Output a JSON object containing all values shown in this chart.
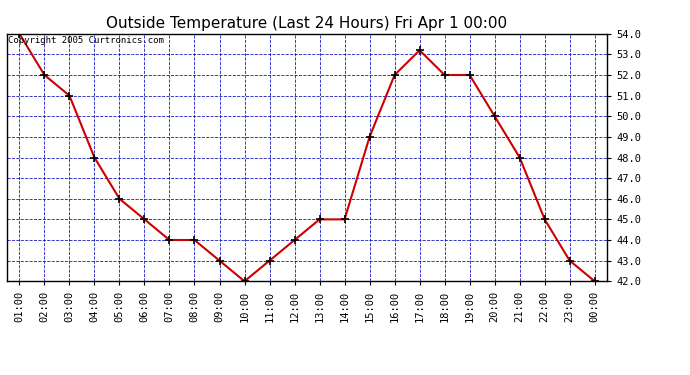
{
  "title": "Outside Temperature (Last 24 Hours) Fri Apr 1 00:00",
  "copyright_text": "Copyright 2005 Curtronics.com",
  "x_labels": [
    "01:00",
    "02:00",
    "03:00",
    "04:00",
    "05:00",
    "06:00",
    "07:00",
    "08:00",
    "09:00",
    "10:00",
    "11:00",
    "12:00",
    "13:00",
    "14:00",
    "15:00",
    "16:00",
    "17:00",
    "18:00",
    "19:00",
    "20:00",
    "21:00",
    "22:00",
    "23:00",
    "00:00"
  ],
  "y_values": [
    54.0,
    52.0,
    51.0,
    48.0,
    46.0,
    45.0,
    44.0,
    44.0,
    43.0,
    42.0,
    43.0,
    44.0,
    45.0,
    45.0,
    49.0,
    52.0,
    53.2,
    52.0,
    52.0,
    50.0,
    48.0,
    45.0,
    43.0,
    42.0
  ],
  "ylim": [
    42.0,
    54.0
  ],
  "yticks": [
    42.0,
    43.0,
    44.0,
    45.0,
    46.0,
    47.0,
    48.0,
    49.0,
    50.0,
    51.0,
    52.0,
    53.0,
    54.0
  ],
  "line_color": "#cc0000",
  "marker": "+",
  "marker_color": "#000000",
  "background_color": "#ffffff",
  "plot_bg_color": "#ffffff",
  "grid_color": "#0000bb",
  "title_fontsize": 11,
  "tick_fontsize": 7.5,
  "copyright_fontsize": 6.5
}
